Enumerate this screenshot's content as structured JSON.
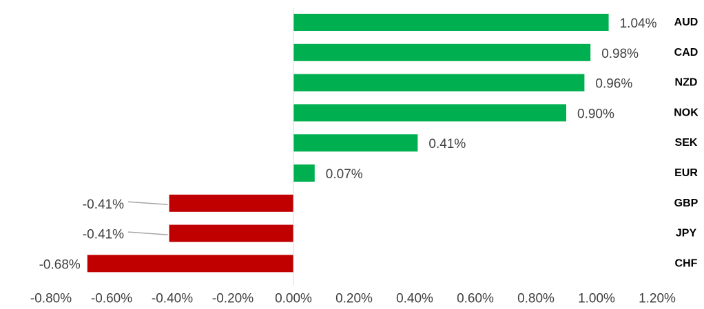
{
  "chart_data": {
    "type": "bar",
    "orientation": "horizontal",
    "categories": [
      "AUD",
      "CAD",
      "NZD",
      "NOK",
      "SEK",
      "EUR",
      "GBP",
      "JPY",
      "CHF"
    ],
    "values": [
      1.04,
      0.98,
      0.96,
      0.9,
      0.41,
      0.07,
      -0.41,
      -0.41,
      -0.68
    ],
    "value_labels": [
      "1.04%",
      "0.98%",
      "0.96%",
      "0.90%",
      "0.41%",
      "0.07%",
      "-0.41%",
      "-0.41%",
      "-0.68%"
    ],
    "x_ticks": [
      -0.8,
      -0.6,
      -0.4,
      -0.2,
      0.0,
      0.2,
      0.4,
      0.6,
      0.8,
      1.0,
      1.2
    ],
    "x_tick_labels": [
      "-0.80%",
      "-0.60%",
      "-0.40%",
      "-0.20%",
      "0.00%",
      "0.20%",
      "0.40%",
      "0.60%",
      "0.80%",
      "1.00%",
      "1.20%"
    ],
    "xlim": [
      -0.8,
      1.2
    ],
    "title": "",
    "xlabel": "",
    "ylabel": "",
    "grid": false,
    "legend": "none",
    "colors": {
      "positive": "#00B050",
      "negative": "#C00000",
      "axis": "#D9D9D9",
      "leader_line": "#A6A6A6"
    }
  }
}
